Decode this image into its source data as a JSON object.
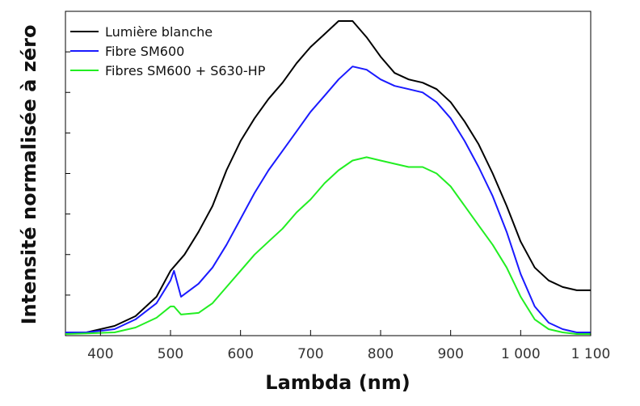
{
  "chart_data": {
    "type": "line",
    "xlabel": "Lambda (nm)",
    "ylabel": "Intensité normalisée à zéro",
    "xlim": [
      350,
      1100
    ],
    "ylim": [
      0,
      1.0
    ],
    "x_ticks": [
      400,
      500,
      600,
      700,
      800,
      900,
      1000,
      1100
    ],
    "x_tick_labels": [
      "400",
      "500",
      "600",
      "700",
      "800",
      "900",
      "1 000",
      "1 100"
    ],
    "y_tick_labels_shown": false,
    "y_minor_ticks": 8,
    "grid": false,
    "legend_position": "top-left",
    "series": [
      {
        "name": "Lumière blanche",
        "color": "#000000",
        "x": [
          350,
          380,
          420,
          450,
          480,
          500,
          520,
          540,
          560,
          580,
          600,
          620,
          640,
          660,
          680,
          700,
          720,
          740,
          760,
          780,
          800,
          820,
          840,
          860,
          880,
          900,
          920,
          940,
          960,
          980,
          1000,
          1020,
          1040,
          1060,
          1080,
          1100
        ],
        "values": [
          0.01,
          0.01,
          0.03,
          0.06,
          0.12,
          0.2,
          0.25,
          0.32,
          0.4,
          0.51,
          0.6,
          0.67,
          0.73,
          0.78,
          0.84,
          0.89,
          0.93,
          0.97,
          0.97,
          0.92,
          0.86,
          0.81,
          0.79,
          0.78,
          0.76,
          0.72,
          0.66,
          0.59,
          0.5,
          0.4,
          0.29,
          0.21,
          0.17,
          0.15,
          0.14,
          0.14
        ]
      },
      {
        "name": "Fibre SM600",
        "color": "#1a1aff",
        "x": [
          350,
          380,
          420,
          450,
          480,
          500,
          505,
          515,
          540,
          560,
          580,
          600,
          620,
          640,
          660,
          680,
          700,
          720,
          740,
          760,
          780,
          800,
          820,
          840,
          860,
          880,
          900,
          920,
          940,
          960,
          980,
          1000,
          1020,
          1040,
          1060,
          1080,
          1100
        ],
        "values": [
          0.01,
          0.01,
          0.02,
          0.05,
          0.1,
          0.17,
          0.2,
          0.12,
          0.16,
          0.21,
          0.28,
          0.36,
          0.44,
          0.51,
          0.57,
          0.63,
          0.69,
          0.74,
          0.79,
          0.83,
          0.82,
          0.79,
          0.77,
          0.76,
          0.75,
          0.72,
          0.67,
          0.6,
          0.52,
          0.43,
          0.32,
          0.19,
          0.09,
          0.04,
          0.02,
          0.01,
          0.01
        ]
      },
      {
        "name": "Fibres SM600 + S630-HP",
        "color": "#22ee22",
        "x": [
          350,
          380,
          420,
          450,
          480,
          500,
          505,
          515,
          540,
          560,
          580,
          600,
          620,
          640,
          660,
          680,
          700,
          720,
          740,
          760,
          780,
          800,
          820,
          840,
          860,
          880,
          900,
          920,
          940,
          960,
          980,
          1000,
          1020,
          1040,
          1060,
          1080,
          1100
        ],
        "values": [
          0.005,
          0.007,
          0.01,
          0.025,
          0.055,
          0.09,
          0.09,
          0.065,
          0.07,
          0.1,
          0.15,
          0.2,
          0.25,
          0.29,
          0.33,
          0.38,
          0.42,
          0.47,
          0.51,
          0.54,
          0.55,
          0.54,
          0.53,
          0.52,
          0.52,
          0.5,
          0.46,
          0.4,
          0.34,
          0.28,
          0.21,
          0.12,
          0.05,
          0.02,
          0.01,
          0.005,
          0.005
        ]
      }
    ]
  }
}
